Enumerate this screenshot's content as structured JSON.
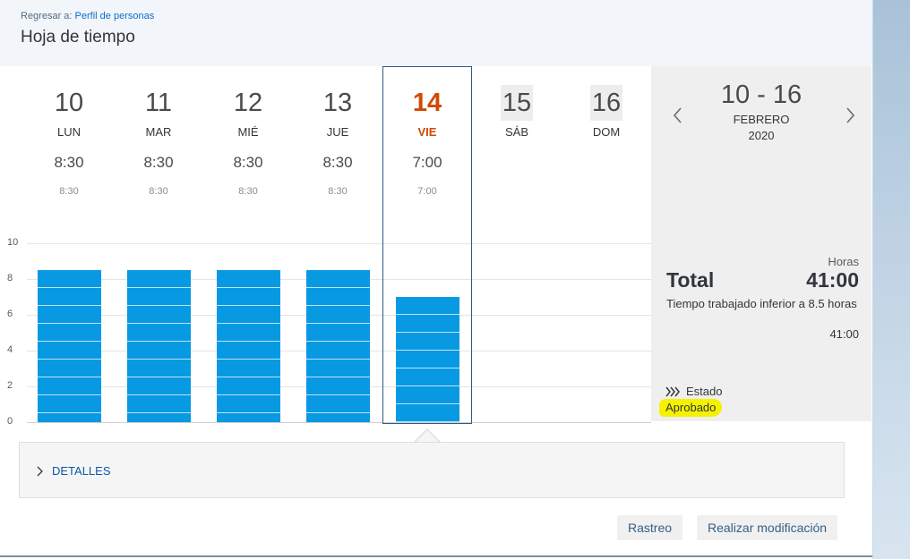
{
  "header": {
    "breadcrumb_prefix": "Regresar a:",
    "breadcrumb_link": "Perfil de personas",
    "title": "Hoja de tiempo"
  },
  "days": [
    {
      "num": "10",
      "name": "LUN",
      "hours": "8:30",
      "planned": "8:30"
    },
    {
      "num": "11",
      "name": "MAR",
      "hours": "8:30",
      "planned": "8:30"
    },
    {
      "num": "12",
      "name": "MIÉ",
      "hours": "8:30",
      "planned": "8:30"
    },
    {
      "num": "13",
      "name": "JUE",
      "hours": "8:30",
      "planned": "8:30"
    },
    {
      "num": "14",
      "name": "VIE",
      "hours": "7:00",
      "planned": "7:00"
    },
    {
      "num": "15",
      "name": "SÁB",
      "hours": "",
      "planned": ""
    },
    {
      "num": "16",
      "name": "DOM",
      "hours": "",
      "planned": ""
    }
  ],
  "selected_day_index": 4,
  "chart_data": {
    "type": "bar",
    "categories": [
      "LUN",
      "MAR",
      "MIÉ",
      "JUE",
      "VIE",
      "SÁB",
      "DOM"
    ],
    "values": [
      8.5,
      8.5,
      8.5,
      8.5,
      7,
      0,
      0
    ],
    "ylim": [
      0,
      10
    ],
    "yticks": [
      "0",
      "2",
      "4",
      "6",
      "8",
      "10"
    ],
    "bar_color": "#0799e2"
  },
  "period": {
    "range": "10 - 16",
    "month": "FEBRERO",
    "year": "2020"
  },
  "summary": {
    "hours_label": "Horas",
    "total_label": "Total",
    "total_value": "41:00",
    "note": "Tiempo trabajado inferior a 8.5 horas",
    "note_value": "41:00",
    "status_label": "Estado",
    "status_value": "Aprobado"
  },
  "details": {
    "label": "DETALLES"
  },
  "buttons": {
    "track": "Rastreo",
    "modify": "Realizar modificación"
  },
  "colors": {
    "accent": "#0a6ed1",
    "selected": "#d04a02",
    "highlight": "#f5f200"
  }
}
